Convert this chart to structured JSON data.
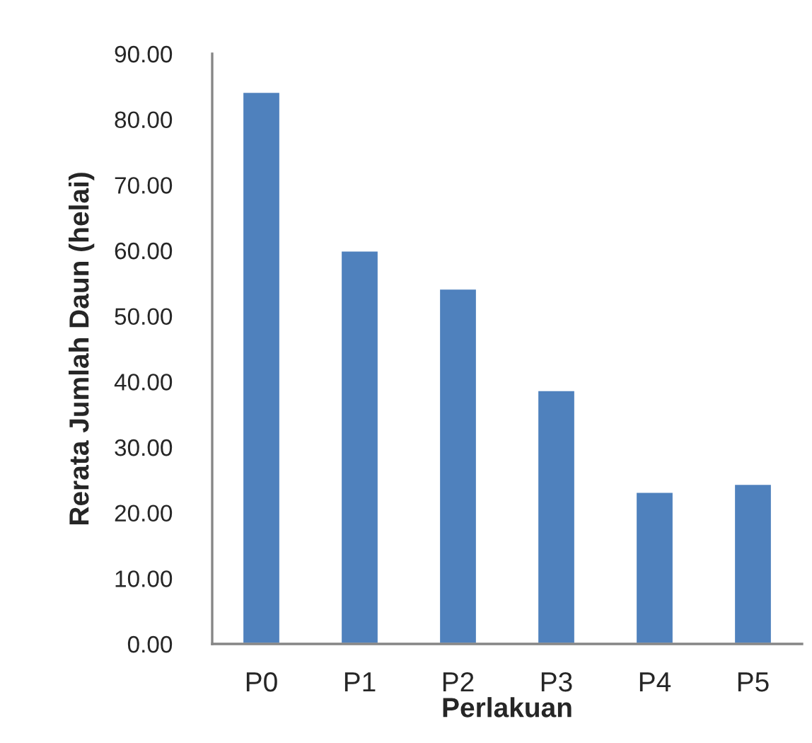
{
  "chart_data": {
    "type": "bar",
    "xlabel": "Perlakuan",
    "ylabel": "Rerata Jumlah Daun (helai)",
    "categories": [
      "P0",
      "P1",
      "P2",
      "P3",
      "P4",
      "P5"
    ],
    "values": [
      84.2,
      60.0,
      54.2,
      38.7,
      23.2,
      24.4
    ],
    "color": "#4f81bd",
    "ylim": [
      0,
      90
    ],
    "yticks": [
      {
        "value": 0,
        "label": "0.00"
      },
      {
        "value": 10,
        "label": "10.00"
      },
      {
        "value": 20,
        "label": "20.00"
      },
      {
        "value": 30,
        "label": "30.00"
      },
      {
        "value": 40,
        "label": "40.00"
      },
      {
        "value": 50,
        "label": "50.00"
      },
      {
        "value": 60,
        "label": "60.00"
      },
      {
        "value": 70,
        "label": "70.00"
      },
      {
        "value": 80,
        "label": "80.00"
      },
      {
        "value": 90,
        "label": "90.00"
      }
    ],
    "grid": false,
    "legend": false
  }
}
